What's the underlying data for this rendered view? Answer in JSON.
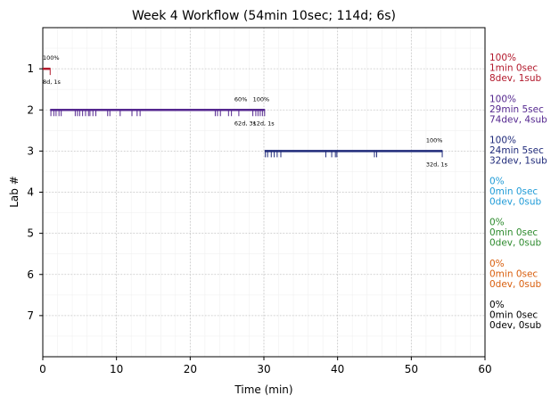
{
  "chart_data": {
    "type": "timeline",
    "title": "Week 4 Workflow (54min 10sec; 114d; 6s)",
    "xlabel": "Time (min)",
    "ylabel": "Lab #",
    "xlim": [
      0,
      60
    ],
    "ylim": [
      0,
      8
    ],
    "x_ticks": [
      "0",
      "10",
      "20",
      "30",
      "40",
      "50",
      "60"
    ],
    "y_ticks": [
      "1",
      "2",
      "3",
      "4",
      "5",
      "6",
      "7"
    ],
    "grid": true,
    "labs": [
      {
        "lab": 1,
        "color": "#b2182b",
        "start": 0,
        "end": 1.0,
        "events": [
          1.0
        ],
        "annotations": [
          {
            "x": 0.0,
            "pct": "100%",
            "stats": "8d, 1s"
          }
        ],
        "side": [
          "100%",
          "1min 0sec",
          "8dev, 1sub"
        ]
      },
      {
        "lab": 2,
        "color": "#54278f",
        "start": 1.0,
        "end": 30.1,
        "events": [
          1.1,
          1.5,
          1.8,
          2.2,
          2.5,
          4.4,
          4.7,
          5.0,
          5.4,
          5.8,
          6.2,
          6.4,
          6.8,
          7.2,
          8.8,
          9.1,
          10.5,
          12.1,
          12.8,
          13.2,
          23.4,
          23.7,
          24.1,
          25.2,
          25.6,
          26.6,
          28.5,
          28.9,
          29.2,
          29.5,
          29.8,
          30.1
        ],
        "annotations": [
          {
            "x": 26.0,
            "pct": "60%",
            "stats": "62d, 3s"
          },
          {
            "x": 28.5,
            "pct": "100%",
            "stats": "12d, 1s"
          }
        ],
        "side": [
          "100%",
          "29min 5sec",
          "74dev, 4sub"
        ]
      },
      {
        "lab": 3,
        "color": "#1f2a7a",
        "start": 30.1,
        "end": 54.2,
        "events": [
          30.2,
          30.5,
          31.0,
          31.4,
          31.8,
          32.3,
          38.4,
          39.2,
          39.7,
          39.9,
          45.0,
          45.3,
          54.2
        ],
        "annotations": [
          {
            "x": 52.0,
            "pct": "100%",
            "stats": "32d, 1s"
          }
        ],
        "side": [
          "100%",
          "24min 5sec",
          "32dev, 1sub"
        ]
      },
      {
        "lab": 4,
        "color": "#1f9bd7",
        "start": null,
        "end": null,
        "events": [],
        "annotations": [],
        "side": [
          "0%",
          "0min 0sec",
          "0dev, 0sub"
        ]
      },
      {
        "lab": 5,
        "color": "#2e8b2e",
        "start": null,
        "end": null,
        "events": [],
        "annotations": [],
        "side": [
          "0%",
          "0min 0sec",
          "0dev, 0sub"
        ]
      },
      {
        "lab": 6,
        "color": "#d95f0e",
        "start": null,
        "end": null,
        "events": [],
        "annotations": [],
        "side": [
          "0%",
          "0min 0sec",
          "0dev, 0sub"
        ]
      },
      {
        "lab": 7,
        "color": "#000000",
        "start": null,
        "end": null,
        "events": [],
        "annotations": [],
        "side": [
          "0%",
          "0min 0sec",
          "0dev, 0sub"
        ]
      }
    ]
  }
}
